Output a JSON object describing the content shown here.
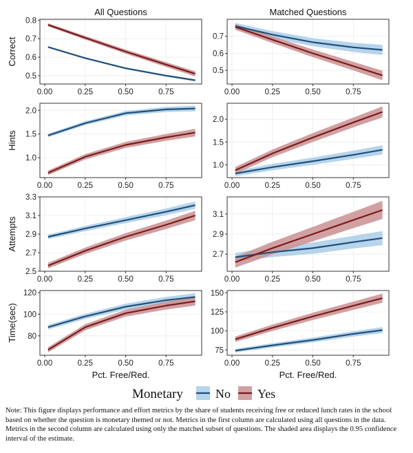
{
  "column_titles": [
    "All Questions",
    "Matched Questions"
  ],
  "legend": {
    "title": "Monetary",
    "labels": [
      "No",
      "Yes"
    ]
  },
  "note": "Note: This figure displays performance and effort metrics by the share of students receiving free or reduced lunch rates in the school based on whether the question is monetary themed or not. Metrics in the first column are calculated using all questions in the data. Metrics in the second column are calculated using only the matched subset of questions. The shaded area displays the 0.95 confidence interval of the estimate.",
  "colors": {
    "no_line": "#1f4e79",
    "no_band": "#a9cce8",
    "yes_line": "#7a1a1a",
    "yes_band": "#c98f92",
    "panel_border": "#333333",
    "grid": "#ebebeb"
  },
  "chart_data": [
    {
      "type": "line",
      "row_label": "Correct",
      "column": "All Questions",
      "xlabel": "",
      "xlim": [
        -0.03,
        0.97
      ],
      "x_ticks": [
        "0.00",
        "0.25",
        "0.50",
        "0.75"
      ],
      "ylim": [
        0.455,
        0.805
      ],
      "y_ticks": [
        "0.5",
        "0.6",
        "0.7",
        "0.8"
      ],
      "series": [
        {
          "name": "No",
          "x": [
            0.02,
            0.25,
            0.5,
            0.75,
            0.93
          ],
          "values": [
            0.655,
            0.595,
            0.54,
            0.5,
            0.475
          ],
          "ci": 0.006
        },
        {
          "name": "Yes",
          "x": [
            0.02,
            0.25,
            0.5,
            0.75,
            0.93
          ],
          "values": [
            0.775,
            0.705,
            0.63,
            0.56,
            0.51
          ],
          "ci": 0.014
        }
      ]
    },
    {
      "type": "line",
      "row_label": "Correct",
      "column": "Matched Questions",
      "xlabel": "",
      "xlim": [
        -0.03,
        0.97
      ],
      "x_ticks": [
        "0.00",
        "0.25",
        "0.50",
        "0.75"
      ],
      "ylim": [
        0.42,
        0.8
      ],
      "y_ticks": [
        "0.5",
        "0.6",
        "0.7"
      ],
      "series": [
        {
          "name": "No",
          "x": [
            0.02,
            0.25,
            0.5,
            0.75,
            0.93
          ],
          "values": [
            0.76,
            0.71,
            0.665,
            0.635,
            0.62
          ],
          "ci": 0.03
        },
        {
          "name": "Yes",
          "x": [
            0.02,
            0.25,
            0.5,
            0.75,
            0.93
          ],
          "values": [
            0.755,
            0.68,
            0.6,
            0.525,
            0.47
          ],
          "ci": 0.028
        }
      ]
    },
    {
      "type": "line",
      "row_label": "Hints",
      "column": "All Questions",
      "xlabel": "",
      "xlim": [
        -0.03,
        0.97
      ],
      "x_ticks": [
        "0.00",
        "0.25",
        "0.50",
        "0.75"
      ],
      "ylim": [
        0.58,
        2.15
      ],
      "y_ticks": [
        "1.0",
        "1.5",
        "2.0"
      ],
      "series": [
        {
          "name": "No",
          "x": [
            0.02,
            0.25,
            0.5,
            0.75,
            0.93
          ],
          "values": [
            1.47,
            1.73,
            1.94,
            2.02,
            2.04
          ],
          "ci": 0.06
        },
        {
          "name": "Yes",
          "x": [
            0.02,
            0.25,
            0.5,
            0.75,
            0.93
          ],
          "values": [
            0.68,
            1.02,
            1.27,
            1.43,
            1.53
          ],
          "ci": 0.08
        }
      ]
    },
    {
      "type": "line",
      "row_label": "Hints",
      "column": "Matched Questions",
      "xlabel": "",
      "xlim": [
        -0.03,
        0.97
      ],
      "x_ticks": [
        "0.00",
        "0.25",
        "0.50",
        "0.75"
      ],
      "ylim": [
        0.72,
        2.35
      ],
      "y_ticks": [
        "1.0",
        "1.5",
        "2.0"
      ],
      "series": [
        {
          "name": "No",
          "x": [
            0.02,
            0.25,
            0.5,
            0.75,
            0.93
          ],
          "values": [
            0.81,
            0.95,
            1.08,
            1.22,
            1.33
          ],
          "ci": 0.1
        },
        {
          "name": "Yes",
          "x": [
            0.02,
            0.25,
            0.5,
            0.75,
            0.93
          ],
          "values": [
            0.88,
            1.25,
            1.6,
            1.93,
            2.16
          ],
          "ci": 0.12
        }
      ]
    },
    {
      "type": "line",
      "row_label": "Attempts",
      "column": "All Questions",
      "xlabel": "",
      "xlim": [
        -0.03,
        0.97
      ],
      "x_ticks": [
        "0.00",
        "0.25",
        "0.50",
        "0.75"
      ],
      "ylim": [
        2.5,
        3.3
      ],
      "y_ticks": [
        "2.5",
        "2.7",
        "2.9",
        "3.1",
        "3.3"
      ],
      "series": [
        {
          "name": "No",
          "x": [
            0.02,
            0.25,
            0.5,
            0.75,
            0.93
          ],
          "values": [
            2.87,
            2.96,
            3.05,
            3.14,
            3.21
          ],
          "ci": 0.04
        },
        {
          "name": "Yes",
          "x": [
            0.02,
            0.25,
            0.5,
            0.75,
            0.93
          ],
          "values": [
            2.56,
            2.72,
            2.87,
            3.0,
            3.1
          ],
          "ci": 0.05
        }
      ]
    },
    {
      "type": "line",
      "row_label": "Attempts",
      "column": "Matched Questions",
      "xlabel": "",
      "xlim": [
        -0.03,
        0.97
      ],
      "x_ticks": [
        "0.00",
        "0.25",
        "0.50",
        "0.75"
      ],
      "ylim": [
        2.53,
        3.27
      ],
      "y_ticks": [
        "2.7",
        "2.9",
        "3.1"
      ],
      "series": [
        {
          "name": "No",
          "x": [
            0.02,
            0.25,
            0.5,
            0.75,
            0.93
          ],
          "values": [
            2.67,
            2.72,
            2.76,
            2.82,
            2.86
          ],
          "ci": 0.07
        },
        {
          "name": "Yes",
          "x": [
            0.02,
            0.25,
            0.5,
            0.75,
            0.93
          ],
          "values": [
            2.62,
            2.76,
            2.9,
            3.04,
            3.14
          ],
          "ci": 0.09
        }
      ]
    },
    {
      "type": "line",
      "row_label": "Time(sec)",
      "column": "All Questions",
      "xlabel": "Pct. Free/Red.",
      "xlim": [
        -0.03,
        0.97
      ],
      "x_ticks": [
        "0.00",
        "0.25",
        "0.50",
        "0.75"
      ],
      "ylim": [
        62,
        122
      ],
      "y_ticks": [
        "80",
        "100",
        "120"
      ],
      "series": [
        {
          "name": "No",
          "x": [
            0.02,
            0.25,
            0.5,
            0.75,
            0.93
          ],
          "values": [
            88,
            98,
            107,
            113,
            116
          ],
          "ci": 3.5
        },
        {
          "name": "Yes",
          "x": [
            0.02,
            0.25,
            0.5,
            0.75,
            0.93
          ],
          "values": [
            67,
            88,
            101,
            108,
            112
          ],
          "ci": 4
        }
      ]
    },
    {
      "type": "line",
      "row_label": "Time(sec)",
      "column": "Matched Questions",
      "xlabel": "Pct. Free/Red.",
      "xlim": [
        -0.03,
        0.97
      ],
      "x_ticks": [
        "0.00",
        "0.25",
        "0.50",
        "0.75"
      ],
      "ylim": [
        68,
        153
      ],
      "y_ticks": [
        "75",
        "100",
        "125",
        "150"
      ],
      "series": [
        {
          "name": "No",
          "x": [
            0.02,
            0.25,
            0.5,
            0.75,
            0.93
          ],
          "values": [
            74,
            81,
            88,
            96,
            101
          ],
          "ci": 4
        },
        {
          "name": "Yes",
          "x": [
            0.02,
            0.25,
            0.5,
            0.75,
            0.93
          ],
          "values": [
            89,
            104,
            119,
            133,
            143
          ],
          "ci": 6
        }
      ]
    }
  ]
}
